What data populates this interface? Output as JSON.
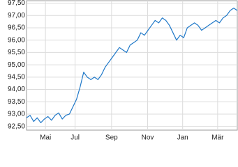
{
  "chart_data": {
    "type": "line",
    "xticks": [
      {
        "value": 5.3,
        "label": "Mai"
      },
      {
        "value": 13.6,
        "label": "Jul"
      },
      {
        "value": 23.8,
        "label": "Sep"
      },
      {
        "value": 33.9,
        "label": "Nov"
      },
      {
        "value": 43.7,
        "label": "Jan"
      },
      {
        "value": 53.5,
        "label": "Mär"
      }
    ],
    "xlim": [
      0,
      59
    ],
    "series": [
      {
        "color": "#1f78c8",
        "values": [
          92.85,
          92.95,
          92.7,
          92.85,
          92.65,
          92.8,
          92.9,
          92.75,
          92.95,
          93.05,
          92.8,
          92.95,
          93.0,
          93.3,
          93.6,
          94.1,
          94.7,
          94.5,
          94.4,
          94.5,
          94.4,
          94.6,
          94.9,
          95.1,
          95.3,
          95.5,
          95.7,
          95.6,
          95.5,
          95.8,
          95.9,
          96.0,
          96.3,
          96.2,
          96.4,
          96.6,
          96.8,
          96.7,
          96.9,
          96.8,
          96.6,
          96.3,
          96.0,
          96.2,
          96.1,
          96.5,
          96.6,
          96.7,
          96.6,
          96.4,
          96.5,
          96.6,
          96.7,
          96.8,
          96.7,
          96.9,
          97.0,
          97.2,
          97.3,
          97.2
        ]
      }
    ],
    "ylim": [
      92.35,
      97.6
    ],
    "yticks": [
      {
        "value": 92.5,
        "label": "92,50"
      },
      {
        "value": 93.0,
        "label": "93,00"
      },
      {
        "value": 93.5,
        "label": "93,50"
      },
      {
        "value": 94.0,
        "label": "94,00"
      },
      {
        "value": 94.5,
        "label": "94,50"
      },
      {
        "value": 95.0,
        "label": "95,00"
      },
      {
        "value": 95.5,
        "label": "95,50"
      },
      {
        "value": 96.0,
        "label": "96,00"
      },
      {
        "value": 96.5,
        "label": "96,50"
      },
      {
        "value": 97.0,
        "label": "97,00"
      },
      {
        "value": 97.5,
        "label": "97,50"
      }
    ],
    "grid": true
  }
}
